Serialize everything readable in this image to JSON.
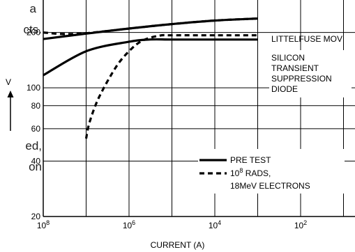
{
  "page_text": {
    "upper_line1": "a",
    "upper_line2": "cts.",
    "lower_line1": "ed,",
    "lower_line2": "on"
  },
  "chart_data": {
    "type": "line",
    "title": "",
    "xlabel": "CURRENT (A)",
    "ylabel": "V",
    "x_scale": "log",
    "y_scale": "log",
    "x_axis_reversed": true,
    "xlim": [
      10,
      1e-08
    ],
    "ylim": [
      20,
      300
    ],
    "x_ticks": [
      {
        "value": 1e-08,
        "base": "10",
        "exp": "8"
      },
      {
        "value": 1e-06,
        "base": "10",
        "exp": "6"
      },
      {
        "value": 0.0001,
        "base": "10",
        "exp": "4"
      },
      {
        "value": 0.01,
        "base": "10",
        "exp": "2"
      }
    ],
    "y_ticks": [
      {
        "value": 20,
        "label": "20"
      },
      {
        "value": 40,
        "label": "40"
      },
      {
        "value": 60,
        "label": "60"
      },
      {
        "value": 80,
        "label": "80"
      },
      {
        "value": 100,
        "label": "100"
      },
      {
        "value": 200,
        "label": "200"
      }
    ],
    "grid": true,
    "series": [
      {
        "name": "PRE TEST",
        "style": "solid",
        "group": "LITTELFUSE MOV",
        "x": [
          1e-08,
          1e-07,
          1e-06,
          1e-05,
          0.0001,
          0.001
        ],
        "y": [
          184,
          197,
          210,
          222,
          232,
          238
        ]
      },
      {
        "name": "PRE TEST",
        "style": "solid",
        "group": "SILICON TRANSIENT SUPPRESSION DIODE",
        "x": [
          1e-08,
          1e-07,
          1e-06,
          3e-06,
          1e-05,
          0.0001,
          0.001
        ],
        "y": [
          117,
          158,
          178,
          183,
          183,
          183,
          183
        ]
      },
      {
        "name": "10^8 RADS, 18MeV ELECTRONS",
        "style": "dashed",
        "group": "LITTELFUSE MOV",
        "x": [
          1e-08,
          3e-08,
          1e-07,
          1e-06,
          1e-05,
          0.0001,
          0.001
        ],
        "y": [
          200,
          196,
          198,
          210,
          222,
          232,
          238
        ]
      },
      {
        "name": "10^8 RADS, 18MeV ELECTRONS",
        "style": "dashed",
        "group": "SILICON TRANSIENT SUPPRESSION DIODE",
        "x": [
          1e-07,
          1.2e-07,
          2e-07,
          5e-07,
          1e-06,
          2e-06,
          5e-06,
          1e-05,
          0.0001,
          0.001
        ],
        "y": [
          53,
          65,
          89,
          130,
          158,
          180,
          192,
          193,
          193,
          193
        ]
      }
    ],
    "annotations": [
      {
        "text": "LITTELFUSE MOV",
        "lines": [
          "LITTELFUSE MOV"
        ]
      },
      {
        "text": "SILICON TRANSIENT SUPPRESSION DIODE",
        "lines": [
          "SILICON",
          "TRANSIENT",
          "SUPPRESSION",
          "DIODE"
        ]
      }
    ],
    "legend": {
      "placement": "lower-right",
      "entries": [
        {
          "style": "solid",
          "lines": [
            "PRE TEST"
          ]
        },
        {
          "style": "dashed",
          "prefix": "10",
          "exp": "8",
          "suffix": " RADS,",
          "lines": [
            "18MeV ELECTRONS"
          ]
        }
      ]
    },
    "colors": {
      "line": "#000000",
      "grid": "#000000",
      "background": "#ffffff"
    }
  }
}
